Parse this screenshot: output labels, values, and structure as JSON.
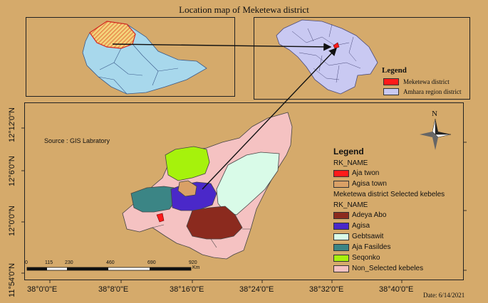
{
  "title": "Location map of Meketewa district",
  "source": "Source : GIS Labratory",
  "date": "Date: 6/14/2021",
  "north": "N",
  "inset_legend": {
    "title": "Legend",
    "items": [
      {
        "label": "Meketewa district",
        "color": "#ff1a1a"
      },
      {
        "label": "Amhara region district",
        "color": "#c9c9f2"
      }
    ]
  },
  "main_legend": {
    "title": "Legend",
    "field1": "RK_NAME",
    "items1": [
      {
        "label": "Aja  twon",
        "color": "#ff1a1a"
      },
      {
        "label": "Agisa  town",
        "color": "#d9a066"
      }
    ],
    "subtitle": "Meketewa district Selected kebeles",
    "field2": "RK_NAME",
    "items2": [
      {
        "label": "Adeya Abo",
        "color": "#8b2a1e"
      },
      {
        "label": "Agisa",
        "color": "#4a28c9"
      },
      {
        "label": "Gebtsawit",
        "color": "#d9fbe8"
      },
      {
        "label": "Aja Fasildes",
        "color": "#3b8585"
      },
      {
        "label": "Seqonko",
        "color": "#a6f20c"
      },
      {
        "label": "Non_Selected kebeles",
        "color": "#f5c2c2"
      }
    ]
  },
  "scale_bar": {
    "labels": [
      "0",
      "115",
      "230",
      "460",
      "690",
      "920"
    ],
    "unit": "Km"
  },
  "longitude_ticks": [
    "38°0'0\"E",
    "38°8'0\"E",
    "38°16'0\"E",
    "38°24'0\"E",
    "38°32'0\"E",
    "38°40'0\"E"
  ],
  "latitude_ticks": [
    "11°54'0\"N",
    "12°0'0\"N",
    "12°6'0\"N",
    "12°12'0\"N"
  ]
}
